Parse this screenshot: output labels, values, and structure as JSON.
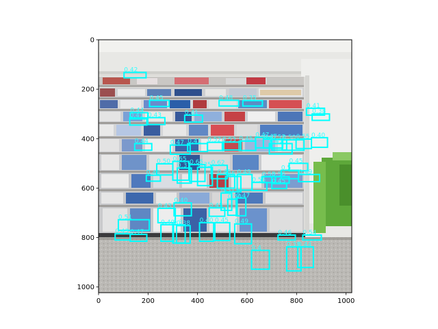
{
  "axes": {
    "x_ticks": [
      "0",
      "200",
      "400",
      "600",
      "800",
      "1000"
    ],
    "y_ticks": [
      "0",
      "200",
      "400",
      "600",
      "800",
      "1000"
    ],
    "x_range": [
      0,
      1023
    ],
    "y_range": [
      1023,
      0
    ]
  },
  "image": {
    "subject": "supermarket pharmacy aisle with shelves of boxed products",
    "colors": {
      "box": "#00ffff",
      "label": "#33ffff",
      "wall": "#e9e9e6",
      "shelf": "#d8d8d8",
      "floor": "#b9b7b3",
      "green_display": "#5ea83a"
    }
  },
  "detections": [
    {
      "label": "0.42",
      "x0": 103,
      "y0": 132,
      "x1": 192,
      "y1": 154
    },
    {
      "label": "0.45",
      "x0": 206,
      "y0": 245,
      "x1": 285,
      "y1": 270
    },
    {
      "label": "0.48",
      "x0": 487,
      "y0": 245,
      "x1": 566,
      "y1": 268
    },
    {
      "label": "0.35",
      "x0": 583,
      "y0": 246,
      "x1": 662,
      "y1": 268
    },
    {
      "label": "0.44",
      "x0": 128,
      "y0": 295,
      "x1": 199,
      "y1": 320
    },
    {
      "label": "0.41",
      "x0": 126,
      "y0": 316,
      "x1": 195,
      "y1": 345
    },
    {
      "label": "0.43",
      "x0": 199,
      "y0": 315,
      "x1": 268,
      "y1": 343
    },
    {
      "label": "0.41",
      "x0": 348,
      "y0": 305,
      "x1": 420,
      "y1": 333
    },
    {
      "label": "0.41",
      "x0": 840,
      "y0": 277,
      "x1": 913,
      "y1": 305
    },
    {
      "label": "0.38",
      "x0": 863,
      "y0": 300,
      "x1": 933,
      "y1": 326
    },
    {
      "label": "0.44",
      "x0": 146,
      "y0": 420,
      "x1": 215,
      "y1": 447
    },
    {
      "label": "0.47",
      "x0": 290,
      "y0": 426,
      "x1": 370,
      "y1": 463
    },
    {
      "label": "0.41",
      "x0": 360,
      "y0": 420,
      "x1": 440,
      "y1": 452
    },
    {
      "label": "0.52",
      "x0": 440,
      "y0": 415,
      "x1": 505,
      "y1": 448
    },
    {
      "label": "0.53",
      "x0": 500,
      "y0": 414,
      "x1": 575,
      "y1": 446
    },
    {
      "label": "0.45",
      "x0": 568,
      "y0": 410,
      "x1": 635,
      "y1": 448
    },
    {
      "label": "0.47",
      "x0": 634,
      "y0": 395,
      "x1": 696,
      "y1": 437
    },
    {
      "label": "0.47",
      "x0": 666,
      "y0": 402,
      "x1": 744,
      "y1": 438
    },
    {
      "label": "0.52",
      "x0": 700,
      "y0": 404,
      "x1": 760,
      "y1": 446
    },
    {
      "label": "0.41",
      "x0": 690,
      "y0": 420,
      "x1": 782,
      "y1": 462
    },
    {
      "label": "0.50",
      "x0": 742,
      "y0": 405,
      "x1": 830,
      "y1": 447
    },
    {
      "label": "0.55",
      "x0": 798,
      "y0": 402,
      "x1": 860,
      "y1": 440
    },
    {
      "label": "0.40",
      "x0": 860,
      "y0": 396,
      "x1": 925,
      "y1": 435
    },
    {
      "label": "0.48",
      "x0": 193,
      "y0": 548,
      "x1": 250,
      "y1": 572
    },
    {
      "label": "0.50",
      "x0": 235,
      "y0": 502,
      "x1": 300,
      "y1": 547
    },
    {
      "label": "0.65",
      "x0": 300,
      "y0": 492,
      "x1": 365,
      "y1": 568
    },
    {
      "label": "0.37",
      "x0": 318,
      "y0": 519,
      "x1": 375,
      "y1": 580
    },
    {
      "label": "0.65",
      "x0": 368,
      "y0": 505,
      "x1": 430,
      "y1": 573
    },
    {
      "label": "0.35",
      "x0": 400,
      "y0": 516,
      "x1": 460,
      "y1": 590
    },
    {
      "label": "0.62",
      "x0": 455,
      "y0": 508,
      "x1": 520,
      "y1": 562
    },
    {
      "label": "0.45",
      "x0": 480,
      "y0": 545,
      "x1": 550,
      "y1": 600
    },
    {
      "label": "0.5",
      "x0": 513,
      "y0": 553,
      "x1": 575,
      "y1": 615
    },
    {
      "label": "0.49",
      "x0": 560,
      "y0": 545,
      "x1": 620,
      "y1": 608
    },
    {
      "label": "0.56",
      "x0": 620,
      "y0": 577,
      "x1": 680,
      "y1": 610
    },
    {
      "label": "0.55",
      "x0": 660,
      "y0": 554,
      "x1": 715,
      "y1": 578
    },
    {
      "label": "0.56",
      "x0": 700,
      "y0": 554,
      "x1": 770,
      "y1": 580
    },
    {
      "label": "0.45",
      "x0": 700,
      "y0": 582,
      "x1": 760,
      "y1": 602
    },
    {
      "label": "0.5",
      "x0": 738,
      "y0": 528,
      "x1": 808,
      "y1": 562
    },
    {
      "label": "0.45",
      "x0": 770,
      "y0": 500,
      "x1": 845,
      "y1": 530
    },
    {
      "label": "0.49",
      "x0": 808,
      "y0": 545,
      "x1": 893,
      "y1": 574
    },
    {
      "label": "0.43",
      "x0": 240,
      "y0": 682,
      "x1": 310,
      "y1": 740
    },
    {
      "label": "0.40",
      "x0": 305,
      "y0": 660,
      "x1": 375,
      "y1": 712
    },
    {
      "label": "0.45",
      "x0": 447,
      "y0": 680,
      "x1": 510,
      "y1": 714
    },
    {
      "label": "0.51",
      "x0": 495,
      "y0": 620,
      "x1": 538,
      "y1": 690
    },
    {
      "label": "0.50",
      "x0": 522,
      "y0": 645,
      "x1": 560,
      "y1": 710
    },
    {
      "label": "0.47",
      "x0": 556,
      "y0": 640,
      "x1": 595,
      "y1": 712
    },
    {
      "label": "0.51",
      "x0": 80,
      "y0": 728,
      "x1": 205,
      "y1": 771
    },
    {
      "label": "0.43",
      "x0": 67,
      "y0": 785,
      "x1": 128,
      "y1": 810
    },
    {
      "label": "0.47",
      "x0": 128,
      "y0": 787,
      "x1": 195,
      "y1": 815
    },
    {
      "label": "0.40",
      "x0": 252,
      "y0": 748,
      "x1": 303,
      "y1": 815
    },
    {
      "label": "0.3",
      "x0": 300,
      "y0": 748,
      "x1": 350,
      "y1": 822
    },
    {
      "label": "0.38",
      "x0": 315,
      "y0": 752,
      "x1": 370,
      "y1": 823
    },
    {
      "label": "0.40",
      "x0": 408,
      "y0": 740,
      "x1": 465,
      "y1": 815
    },
    {
      "label": "0.45",
      "x0": 470,
      "y0": 740,
      "x1": 530,
      "y1": 812
    },
    {
      "label": "0.49",
      "x0": 550,
      "y0": 745,
      "x1": 618,
      "y1": 825
    },
    {
      "label": "0.46",
      "x0": 725,
      "y0": 790,
      "x1": 795,
      "y1": 810
    },
    {
      "label": "0.54",
      "x0": 825,
      "y0": 790,
      "x1": 900,
      "y1": 810
    },
    {
      "label": "0.4",
      "x0": 618,
      "y0": 852,
      "x1": 690,
      "y1": 928
    },
    {
      "label": "0.39",
      "x0": 760,
      "y0": 838,
      "x1": 818,
      "y1": 935
    },
    {
      "label": "0.44",
      "x0": 805,
      "y0": 838,
      "x1": 868,
      "y1": 921
    }
  ]
}
